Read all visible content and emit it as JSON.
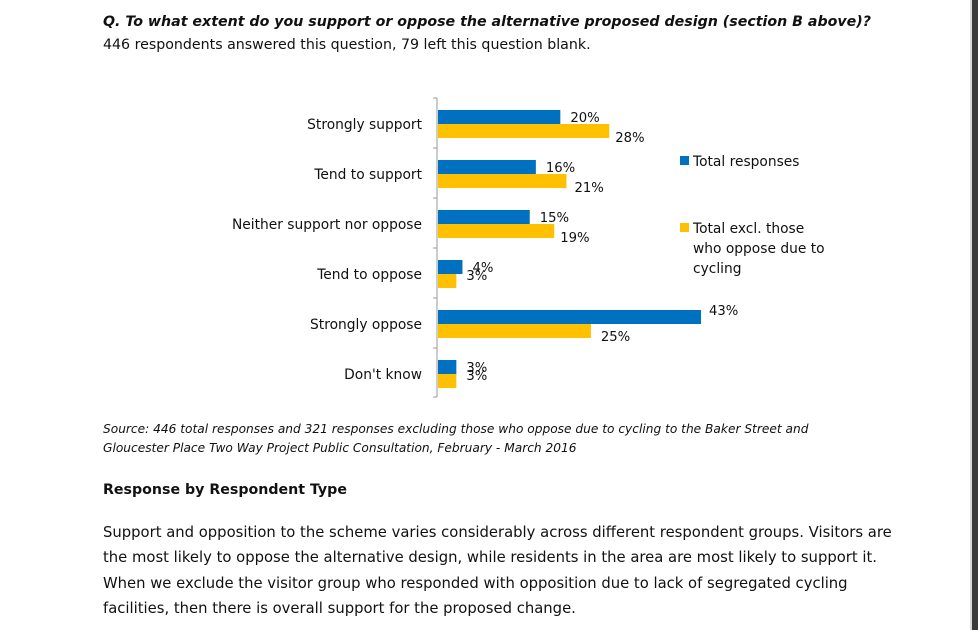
{
  "question": "Q. To what extent do you support or oppose the alternative proposed design (section B above)?",
  "answered": "446 respondents answered this question, 79 left this question blank.",
  "chart_data": {
    "type": "bar",
    "orientation": "horizontal",
    "categories": [
      "Strongly support",
      "Tend to support",
      "Neither support nor oppose",
      "Tend to oppose",
      "Strongly oppose",
      "Don't know"
    ],
    "series": [
      {
        "name": "Total responses",
        "values": [
          20,
          16,
          15,
          4,
          43,
          3
        ],
        "labels": [
          "20%",
          "16%",
          "15%",
          "4%",
          "43%",
          "3%"
        ],
        "color": "#0070C0"
      },
      {
        "name": "Total excl. those who oppose due to cycling",
        "values": [
          28,
          21,
          19,
          3,
          25,
          3
        ],
        "labels": [
          "28%",
          "21%",
          "19%",
          "3%",
          "25%",
          "3%"
        ],
        "color": "#FFC000"
      }
    ],
    "legend": [
      {
        "lines": [
          "Total responses"
        ],
        "color": "#0070C0"
      },
      {
        "lines": [
          "Total excl. those",
          "who oppose due to",
          "cycling"
        ],
        "color": "#FFC000"
      }
    ],
    "legend_position": "right",
    "xlim": [
      0,
      43
    ],
    "grid": false
  },
  "source": "Source: 446 total responses and 321 responses excluding those who oppose due to cycling to the Baker Street and Gloucester Place Two Way Project Public Consultation, February - March 2016",
  "section_heading": "Response by Respondent Type",
  "paragraph": "Support and opposition to the scheme varies considerably across different respondent groups. Visitors are the most likely to oppose the alternative design, while residents in the area are most likely to support it. When we exclude the visitor group who responded with opposition due to lack of segregated cycling facilities, then there is overall support for the proposed change."
}
